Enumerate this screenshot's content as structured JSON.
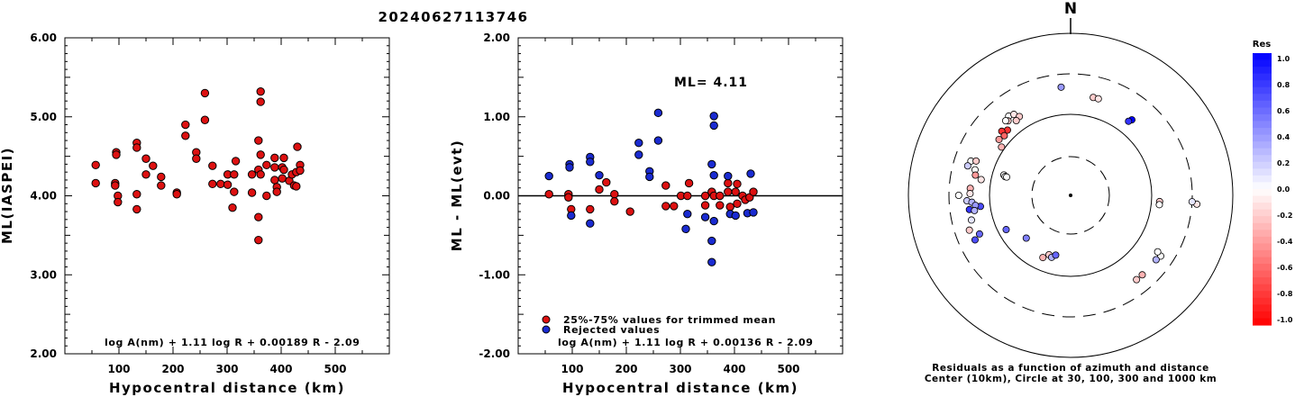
{
  "title": "20240627113746",
  "chart_data": [
    {
      "type": "scatter",
      "xlabel": "Hypocentral distance (km)",
      "ylabel": "ML(IASPEI)",
      "xlim": [
        0,
        600
      ],
      "ylim": [
        2.0,
        6.0
      ],
      "xticks": [
        "100",
        "200",
        "300",
        "400",
        "500"
      ],
      "yticks": [
        "2.00",
        "3.00",
        "4.00",
        "5.00",
        "6.00"
      ],
      "formula": "log A(nm) + 1.11 log R + 0.00189 R - 2.09",
      "color": "#dd1111",
      "points": [
        [
          57,
          4.39
        ],
        [
          57,
          4.16
        ],
        [
          93,
          4.16
        ],
        [
          93,
          4.13
        ],
        [
          95,
          4.55
        ],
        [
          95,
          4.52
        ],
        [
          98,
          4.0
        ],
        [
          98,
          3.92
        ],
        [
          133,
          4.67
        ],
        [
          133,
          4.61
        ],
        [
          133,
          4.02
        ],
        [
          133,
          3.83
        ],
        [
          150,
          4.47
        ],
        [
          150,
          4.27
        ],
        [
          163,
          4.38
        ],
        [
          178,
          4.24
        ],
        [
          178,
          4.13
        ],
        [
          207,
          4.04
        ],
        [
          207,
          4.02
        ],
        [
          223,
          4.9
        ],
        [
          223,
          4.76
        ],
        [
          243,
          4.55
        ],
        [
          243,
          4.47
        ],
        [
          259,
          5.3
        ],
        [
          259,
          4.96
        ],
        [
          273,
          4.38
        ],
        [
          273,
          4.15
        ],
        [
          288,
          4.15
        ],
        [
          301,
          4.27
        ],
        [
          301,
          4.14
        ],
        [
          310,
          3.85
        ],
        [
          313,
          4.27
        ],
        [
          313,
          4.05
        ],
        [
          316,
          4.44
        ],
        [
          346,
          4.27
        ],
        [
          346,
          4.04
        ],
        [
          358,
          4.7
        ],
        [
          358,
          4.33
        ],
        [
          358,
          3.73
        ],
        [
          358,
          3.44
        ],
        [
          362,
          5.32
        ],
        [
          362,
          5.19
        ],
        [
          362,
          4.52
        ],
        [
          362,
          4.27
        ],
        [
          373,
          4.39
        ],
        [
          373,
          4.0
        ],
        [
          388,
          4.48
        ],
        [
          388,
          4.36
        ],
        [
          388,
          4.2
        ],
        [
          392,
          4.11
        ],
        [
          392,
          4.05
        ],
        [
          402,
          4.36
        ],
        [
          402,
          4.22
        ],
        [
          405,
          4.48
        ],
        [
          405,
          4.33
        ],
        [
          415,
          4.19
        ],
        [
          420,
          4.27
        ],
        [
          424,
          4.13
        ],
        [
          428,
          4.3
        ],
        [
          428,
          4.12
        ],
        [
          430,
          4.62
        ],
        [
          435,
          4.39
        ],
        [
          435,
          4.32
        ]
      ]
    },
    {
      "type": "scatter",
      "xlabel": "Hypocentral distance (km)",
      "ylabel": "ML - ML(evt)",
      "xlim": [
        0,
        600
      ],
      "ylim": [
        -2.0,
        2.0
      ],
      "xticks": [
        "100",
        "200",
        "300",
        "400",
        "500"
      ],
      "yticks": [
        "-2.00",
        "-1.00",
        "0.00",
        "1.00",
        "2.00"
      ],
      "annotation": "ML= 4.11",
      "formula": "log A(nm) + 1.11 log R + 0.00136 R - 2.09",
      "legend": [
        {
          "label": "25%-75% values for trimmed mean",
          "color": "#dd1111"
        },
        {
          "label": "Rejected values",
          "color": "#1a2bd1"
        }
      ],
      "points_trimmed": [
        [
          57,
          0.02
        ],
        [
          93,
          0.02
        ],
        [
          93,
          -0.02
        ],
        [
          98,
          -0.17
        ],
        [
          133,
          -0.17
        ],
        [
          150,
          0.08
        ],
        [
          163,
          0.17
        ],
        [
          178,
          0.02
        ],
        [
          178,
          -0.07
        ],
        [
          207,
          -0.2
        ],
        [
          273,
          0.13
        ],
        [
          273,
          -0.13
        ],
        [
          288,
          -0.13
        ],
        [
          301,
          0.0
        ],
        [
          313,
          0.0
        ],
        [
          316,
          0.16
        ],
        [
          346,
          0.0
        ],
        [
          346,
          -0.12
        ],
        [
          358,
          0.05
        ],
        [
          362,
          0.0
        ],
        [
          373,
          0.0
        ],
        [
          373,
          -0.12
        ],
        [
          388,
          0.16
        ],
        [
          388,
          0.05
        ],
        [
          392,
          -0.14
        ],
        [
          402,
          0.05
        ],
        [
          405,
          0.15
        ],
        [
          405,
          -0.1
        ],
        [
          415,
          0.0
        ],
        [
          420,
          -0.05
        ],
        [
          428,
          -0.02
        ],
        [
          435,
          0.05
        ]
      ],
      "points_rejected": [
        [
          57,
          0.25
        ],
        [
          95,
          0.4
        ],
        [
          95,
          0.36
        ],
        [
          98,
          -0.25
        ],
        [
          133,
          0.49
        ],
        [
          133,
          0.43
        ],
        [
          133,
          -0.35
        ],
        [
          150,
          0.26
        ],
        [
          223,
          0.67
        ],
        [
          223,
          0.52
        ],
        [
          243,
          0.31
        ],
        [
          243,
          0.24
        ],
        [
          259,
          1.05
        ],
        [
          259,
          0.7
        ],
        [
          310,
          -0.42
        ],
        [
          313,
          -0.23
        ],
        [
          346,
          -0.27
        ],
        [
          358,
          0.4
        ],
        [
          358,
          -0.57
        ],
        [
          358,
          -0.84
        ],
        [
          362,
          1.01
        ],
        [
          362,
          0.89
        ],
        [
          362,
          0.26
        ],
        [
          362,
          -0.32
        ],
        [
          388,
          0.25
        ],
        [
          392,
          -0.23
        ],
        [
          402,
          -0.25
        ],
        [
          424,
          -0.22
        ],
        [
          430,
          0.28
        ],
        [
          435,
          -0.21
        ]
      ]
    },
    {
      "type": "polar-scatter",
      "north_label": "N",
      "caption_line1": "Residuals as a function of azimuth and distance",
      "caption_line2": "Center (10km), Circle at 30, 100, 300 and 1000 km",
      "colorbar_title": "Res",
      "colorbar_ticks": [
        "1.0",
        "0.8",
        "0.6",
        "0.4",
        "0.2",
        "0.0",
        "-0.2",
        "-0.4",
        "-0.6",
        "-0.8",
        "-1.0"
      ],
      "points_az_r_res": [
        [
          355,
          0.67,
          0.4
        ],
        [
          13,
          0.62,
          -0.2
        ],
        [
          16,
          0.62,
          -0.1
        ],
        [
          39,
          0.6,
          1.0
        ],
        [
          38,
          0.58,
          0.8
        ],
        [
          322,
          0.62,
          0.0
        ],
        [
          325,
          0.61,
          -0.1
        ],
        [
          320,
          0.6,
          -0.2
        ],
        [
          319,
          0.61,
          0.0
        ],
        [
          327,
          0.58,
          -0.2
        ],
        [
          324,
          0.57,
          -0.2
        ],
        [
          316,
          0.56,
          -0.8
        ],
        [
          313,
          0.58,
          -0.8
        ],
        [
          312,
          0.55,
          -0.6
        ],
        [
          308,
          0.56,
          -0.4
        ],
        [
          305,
          0.52,
          -0.3
        ],
        [
          289,
          0.65,
          0.0
        ],
        [
          286,
          0.66,
          0.2
        ],
        [
          290,
          0.62,
          -0.2
        ],
        [
          285,
          0.61,
          0.0
        ],
        [
          282,
          0.6,
          -0.4
        ],
        [
          280,
          0.56,
          -0.1
        ],
        [
          274,
          0.62,
          -0.3
        ],
        [
          271,
          0.62,
          -0.1
        ],
        [
          270,
          0.69,
          0.0
        ],
        [
          267,
          0.64,
          0.2
        ],
        [
          266,
          0.61,
          0.3
        ],
        [
          262,
          0.63,
          0.8
        ],
        [
          263,
          0.56,
          0.7
        ],
        [
          264,
          0.59,
          0.4
        ],
        [
          261,
          0.6,
          0.3
        ],
        [
          256,
          0.63,
          0.1
        ],
        [
          251,
          0.66,
          -0.2
        ],
        [
          247,
          0.61,
          0.6
        ],
        [
          245,
          0.65,
          0.7
        ],
        [
          242,
          0.45,
          0.6
        ],
        [
          226,
          0.38,
          0.5
        ],
        [
          204,
          0.42,
          -0.3
        ],
        [
          200,
          0.39,
          -0.2
        ],
        [
          197,
          0.4,
          0.3
        ],
        [
          194,
          0.38,
          0.6
        ],
        [
          142,
          0.66,
          -0.2
        ],
        [
          138,
          0.66,
          -0.3
        ],
        [
          124,
          0.67,
          0.0
        ],
        [
          123,
          0.64,
          0.0
        ],
        [
          127,
          0.66,
          0.3
        ],
        [
          94,
          0.78,
          -0.1
        ],
        [
          93,
          0.75,
          0.1
        ],
        [
          94,
          0.55,
          -0.2
        ],
        [
          96,
          0.55,
          0.0
        ],
        [
          287,
          0.43,
          0.0
        ],
        [
          286,
          0.42,
          0.0
        ],
        [
          286,
          0.41,
          0.0
        ]
      ]
    }
  ]
}
